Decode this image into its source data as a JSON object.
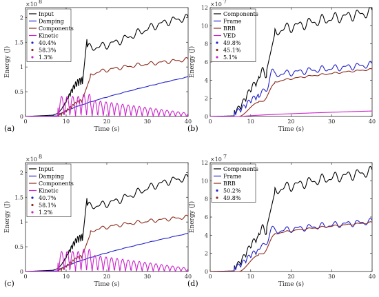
{
  "chart_data": [
    {
      "type": "line",
      "panel_label": "(a)",
      "xlabel": "Time (s)",
      "ylabel": "Energy (J)",
      "xlim": [
        0,
        40
      ],
      "ylim": [
        0,
        2.2
      ],
      "exponent": "8",
      "xticks": [
        "0",
        "10",
        "20",
        "30",
        "40"
      ],
      "yticks": [
        "0",
        "0.5",
        "1",
        "1.5",
        "2"
      ],
      "grid": false,
      "legend_position": "top-left",
      "series": [
        {
          "name": "Input",
          "color": "#000000",
          "shape": "input",
          "final": 1.98,
          "scale": 1.0
        },
        {
          "name": "Damping",
          "color": "#1f1fcc",
          "shape": "damping",
          "final": 0.8,
          "scale": 1.0
        },
        {
          "name": "Components",
          "color": "#8b2a1a",
          "shape": "components",
          "final": 1.15,
          "scale": 1.0
        },
        {
          "name": "Kinetic",
          "color": "#cc22cc",
          "shape": "kinetic",
          "final": 0.0,
          "scale": 0.45
        }
      ],
      "markers": [
        {
          "label": "40.4%",
          "color": "#1f1fcc"
        },
        {
          "label": "58.3%",
          "color": "#8b2a1a"
        },
        {
          "label": "1.3%",
          "color": "#cc22cc"
        }
      ]
    },
    {
      "type": "line",
      "panel_label": "(b)",
      "xlabel": "Time (s)",
      "ylabel": "Energy (J)",
      "xlim": [
        0,
        40
      ],
      "ylim": [
        0,
        12
      ],
      "exponent": "7",
      "xticks": [
        "0",
        "10",
        "20",
        "30",
        "40"
      ],
      "yticks": [
        "0",
        "2",
        "4",
        "6",
        "8",
        "10",
        "12"
      ],
      "grid": false,
      "legend_position": "top-left",
      "series": [
        {
          "name": "Components",
          "color": "#000000",
          "shape": "comp_b",
          "final": 11.5,
          "scale": 1.0
        },
        {
          "name": "Frame",
          "color": "#1f1fcc",
          "shape": "frame_b",
          "final": 5.7,
          "scale": 1.0
        },
        {
          "name": "BRB",
          "color": "#8b2a1a",
          "shape": "brb_b",
          "final": 5.2,
          "scale": 1.0
        },
        {
          "name": "VED",
          "color": "#cc22cc",
          "shape": "ved",
          "final": 0.6,
          "scale": 1.0
        }
      ],
      "markers": [
        {
          "label": "49.8%",
          "color": "#1f1fcc"
        },
        {
          "label": "45.1%",
          "color": "#8b2a1a"
        },
        {
          "label": "5.1%",
          "color": "#cc22cc"
        }
      ]
    },
    {
      "type": "line",
      "panel_label": "(c)",
      "xlabel": "Time (s)",
      "ylabel": "Energy (J)",
      "xlim": [
        0,
        40
      ],
      "ylim": [
        0,
        2.2
      ],
      "exponent": "8",
      "xticks": [
        "0",
        "10",
        "20",
        "30",
        "40"
      ],
      "yticks": [
        "0",
        "0.5",
        "1",
        "1.5",
        "2"
      ],
      "grid": false,
      "legend_position": "top-left",
      "series": [
        {
          "name": "Input",
          "color": "#000000",
          "shape": "input",
          "final": 1.88,
          "scale": 1.0
        },
        {
          "name": "Damping",
          "color": "#1f1fcc",
          "shape": "damping",
          "final": 0.77,
          "scale": 1.0
        },
        {
          "name": "Components",
          "color": "#8b2a1a",
          "shape": "components",
          "final": 1.1,
          "scale": 1.0
        },
        {
          "name": "Kinetic",
          "color": "#cc22cc",
          "shape": "kinetic",
          "final": 0.0,
          "scale": 0.45
        }
      ],
      "markers": [
        {
          "label": "40.7%",
          "color": "#1f1fcc"
        },
        {
          "label": "58.1%",
          "color": "#8b2a1a"
        },
        {
          "label": "1.2%",
          "color": "#cc22cc"
        }
      ]
    },
    {
      "type": "line",
      "panel_label": "(d)",
      "xlabel": "Time (s)",
      "ylabel": "Energy (J)",
      "xlim": [
        0,
        40
      ],
      "ylim": [
        0,
        12
      ],
      "exponent": "7",
      "xticks": [
        "0",
        "10",
        "20",
        "30",
        "40"
      ],
      "yticks": [
        "0",
        "2",
        "4",
        "6",
        "8",
        "10",
        "12"
      ],
      "grid": false,
      "legend_position": "top-left",
      "series": [
        {
          "name": "Components",
          "color": "#000000",
          "shape": "comp_b",
          "final": 11.0,
          "scale": 1.0
        },
        {
          "name": "Frame",
          "color": "#1f1fcc",
          "shape": "frame_d",
          "final": 5.5,
          "scale": 1.0
        },
        {
          "name": "BRB",
          "color": "#8b2a1a",
          "shape": "brb_d",
          "final": 5.4,
          "scale": 1.0
        }
      ],
      "markers": [
        {
          "label": "50.2%",
          "color": "#1f1fcc"
        },
        {
          "label": "49.8%",
          "color": "#8b2a1a"
        }
      ]
    }
  ]
}
